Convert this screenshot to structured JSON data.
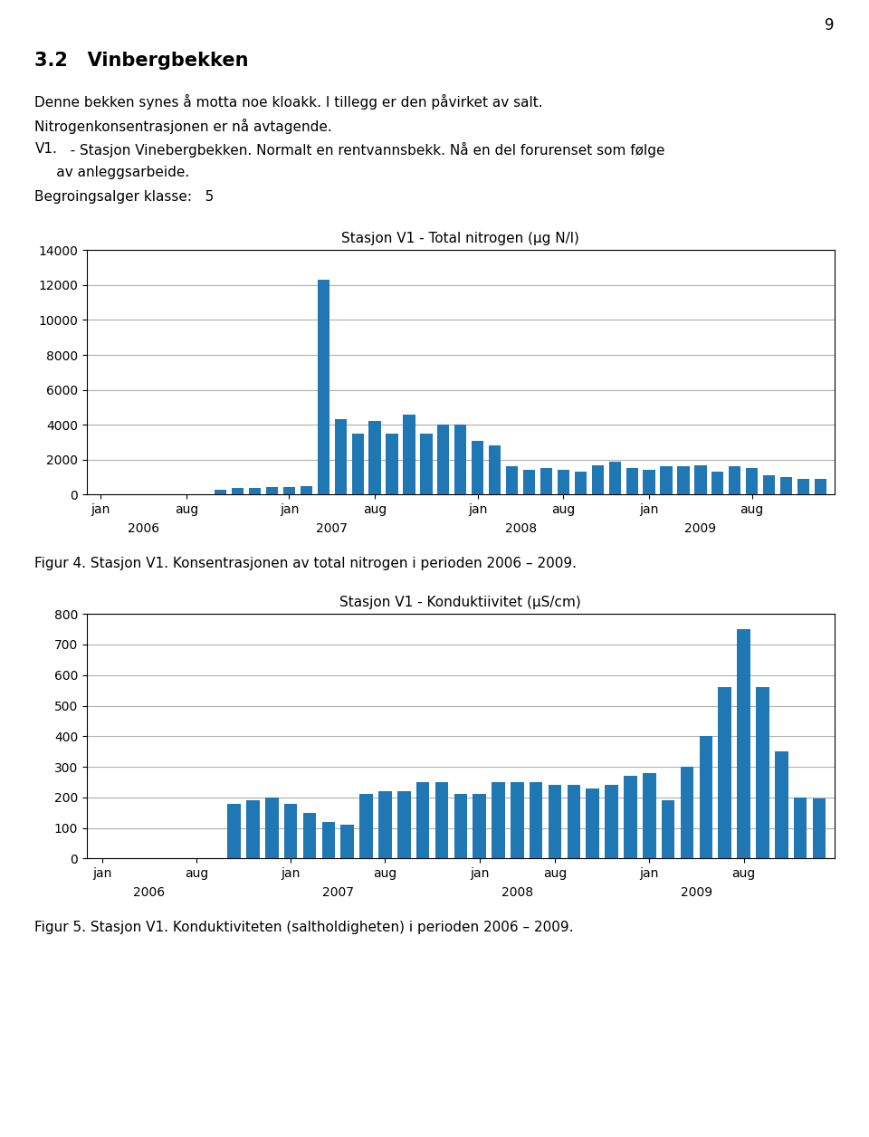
{
  "annotations": {
    "page_number": "9",
    "text_lines": [
      [
        "3.2   Vinbergbekken"
      ],
      [
        "Denne bekken synes å motta noe kloakk. I tillegg er den påvirket av salt."
      ],
      [
        "Nitrogenkonsentrasjonen er nå avtagende."
      ],
      [
        "V1.",
        "   - Stasjon Vinebergbekken. Normalt en rentvannsbekk. Nå en del forurenset som følge"
      ],
      [
        "     av anleggsarbeide."
      ],
      [
        "Begroingsalger klasse:",
        "   5"
      ]
    ]
  },
  "chart_data": [
    {
      "type": "bar",
      "title": "Stasjon V1 - Total nitrogen (µg N/l)",
      "categories": [
        "jan",
        null,
        null,
        null,
        null,
        "aug",
        null,
        null,
        null,
        null,
        null,
        "jan",
        null,
        null,
        null,
        null,
        "aug",
        null,
        null,
        null,
        null,
        null,
        "jan",
        null,
        null,
        null,
        null,
        "aug",
        null,
        null,
        null,
        null,
        "jan",
        null,
        null,
        null,
        null,
        null,
        "aug",
        null,
        null,
        null,
        null
      ],
      "groups": [
        "2006",
        "2007",
        "2008",
        "2009"
      ],
      "values": [
        0,
        0,
        0,
        0,
        0,
        0,
        0,
        300,
        400,
        400,
        450,
        450,
        480,
        12300,
        4300,
        3500,
        4200,
        3500,
        4600,
        3500,
        4000,
        4000,
        3100,
        2800,
        1600,
        1400,
        1500,
        1400,
        1300,
        1700,
        1900,
        1500,
        1400,
        1600,
        1600,
        1700,
        1300,
        1600,
        1500,
        1100,
        1000,
        900,
        900
      ],
      "ylim": [
        0,
        14000
      ],
      "yticks": [
        0,
        2000,
        4000,
        6000,
        8000,
        10000,
        12000,
        14000
      ],
      "grid": true,
      "caption": "Figur 4. Stasjon V1. Konsentrasjonen av total nitrogen i perioden 2006 – 2009."
    },
    {
      "type": "bar",
      "title": "Stasjon V1 - Konduktiivitet (µS/cm)",
      "categories": [
        "jan",
        null,
        null,
        null,
        null,
        "aug",
        null,
        null,
        null,
        null,
        "jan",
        null,
        null,
        null,
        null,
        "aug",
        null,
        null,
        null,
        null,
        "jan",
        null,
        null,
        null,
        "aug",
        null,
        null,
        null,
        null,
        "jan",
        null,
        null,
        null,
        null,
        "aug",
        null,
        null,
        null,
        null
      ],
      "groups": [
        "2006",
        "2007",
        "2008",
        "2009"
      ],
      "values": [
        0,
        0,
        0,
        0,
        0,
        0,
        0,
        180,
        190,
        200,
        180,
        150,
        120,
        110,
        210,
        220,
        220,
        250,
        250,
        210,
        210,
        250,
        250,
        250,
        240,
        240,
        230,
        240,
        270,
        280,
        190,
        300,
        400,
        560,
        750,
        560,
        350,
        200,
        195
      ],
      "ylim": [
        0,
        800
      ],
      "yticks": [
        0,
        100,
        200,
        300,
        400,
        500,
        600,
        700,
        800
      ],
      "grid": true,
      "caption": "Figur 5. Stasjon V1. Konduktiviteten (saltholdigheten) i perioden 2006 – 2009."
    }
  ]
}
